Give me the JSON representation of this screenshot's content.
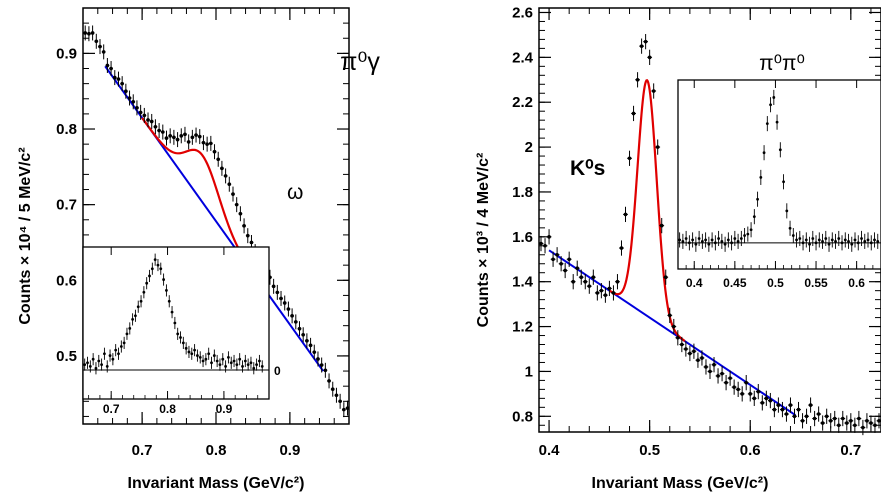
{
  "chart_data": [
    {
      "type": "scatter",
      "panel": "left",
      "annotation": "π⁰γ",
      "peak_label": "ω",
      "xlabel": "Invariant Mass (GeV/c²)",
      "ylabel": "Counts × 10⁴ / 5 MeV/c²",
      "xlim": [
        0.62,
        0.98
      ],
      "ylim": [
        0.41,
        0.96
      ],
      "xticks": [
        0.7,
        0.8,
        0.9
      ],
      "yticks": [
        0.5,
        0.6,
        0.7,
        0.8,
        0.9
      ],
      "grid": false,
      "data_points": [
        [
          0.623,
          0.927
        ],
        [
          0.628,
          0.926
        ],
        [
          0.633,
          0.927
        ],
        [
          0.638,
          0.916
        ],
        [
          0.643,
          0.909
        ],
        [
          0.648,
          0.902
        ],
        [
          0.653,
          0.884
        ],
        [
          0.658,
          0.88
        ],
        [
          0.663,
          0.868
        ],
        [
          0.668,
          0.866
        ],
        [
          0.673,
          0.86
        ],
        [
          0.678,
          0.85
        ],
        [
          0.683,
          0.841
        ],
        [
          0.688,
          0.836
        ],
        [
          0.693,
          0.828
        ],
        [
          0.698,
          0.822
        ],
        [
          0.703,
          0.818
        ],
        [
          0.708,
          0.812
        ],
        [
          0.713,
          0.81
        ],
        [
          0.718,
          0.803
        ],
        [
          0.723,
          0.798
        ],
        [
          0.728,
          0.796
        ],
        [
          0.733,
          0.788
        ],
        [
          0.738,
          0.791
        ],
        [
          0.743,
          0.789
        ],
        [
          0.748,
          0.786
        ],
        [
          0.753,
          0.791
        ],
        [
          0.758,
          0.793
        ],
        [
          0.763,
          0.783
        ],
        [
          0.768,
          0.789
        ],
        [
          0.773,
          0.792
        ],
        [
          0.778,
          0.79
        ],
        [
          0.783,
          0.782
        ],
        [
          0.788,
          0.78
        ],
        [
          0.793,
          0.781
        ],
        [
          0.798,
          0.77
        ],
        [
          0.803,
          0.76
        ],
        [
          0.808,
          0.748
        ],
        [
          0.813,
          0.738
        ],
        [
          0.818,
          0.727
        ],
        [
          0.823,
          0.714
        ],
        [
          0.828,
          0.7
        ],
        [
          0.833,
          0.688
        ],
        [
          0.838,
          0.672
        ],
        [
          0.843,
          0.659
        ],
        [
          0.848,
          0.65
        ],
        [
          0.853,
          0.638
        ],
        [
          0.858,
          0.63
        ],
        [
          0.863,
          0.618
        ],
        [
          0.868,
          0.61
        ],
        [
          0.873,
          0.604
        ],
        [
          0.878,
          0.592
        ],
        [
          0.883,
          0.584
        ],
        [
          0.888,
          0.576
        ],
        [
          0.893,
          0.57
        ],
        [
          0.898,
          0.562
        ],
        [
          0.903,
          0.553
        ],
        [
          0.908,
          0.545
        ],
        [
          0.913,
          0.536
        ],
        [
          0.918,
          0.528
        ],
        [
          0.923,
          0.52
        ],
        [
          0.928,
          0.514
        ],
        [
          0.933,
          0.505
        ],
        [
          0.938,
          0.496
        ],
        [
          0.943,
          0.488
        ],
        [
          0.948,
          0.481
        ],
        [
          0.953,
          0.467
        ],
        [
          0.958,
          0.456
        ],
        [
          0.963,
          0.448
        ],
        [
          0.968,
          0.44
        ],
        [
          0.973,
          0.429
        ],
        [
          0.978,
          0.431
        ]
      ],
      "background_fit": {
        "color": "#0000dd",
        "x": [
          0.65,
          0.945
        ],
        "y": [
          0.883,
          0.48
        ]
      },
      "signal_fit": {
        "color": "#e00000",
        "x_range": [
          0.7,
          0.86
        ],
        "peak_mass": 0.782,
        "peak_width": 0.022,
        "peak_height": 0.062
      },
      "inset": {
        "xlim": [
          0.65,
          0.98
        ],
        "xticks": [
          0.7,
          0.8,
          0.9
        ],
        "baseline_label": "0",
        "points": [
          [
            0.653,
            0.03
          ],
          [
            0.658,
            0.04
          ],
          [
            0.663,
            0.02
          ],
          [
            0.668,
            0.06
          ],
          [
            0.673,
            0.01
          ],
          [
            0.678,
            0.05
          ],
          [
            0.683,
            0.03
          ],
          [
            0.688,
            0.09
          ],
          [
            0.693,
            0.02
          ],
          [
            0.698,
            0.08
          ],
          [
            0.703,
            0.06
          ],
          [
            0.708,
            0.11
          ],
          [
            0.713,
            0.09
          ],
          [
            0.718,
            0.13
          ],
          [
            0.723,
            0.15
          ],
          [
            0.728,
            0.2
          ],
          [
            0.733,
            0.23
          ],
          [
            0.738,
            0.28
          ],
          [
            0.743,
            0.3
          ],
          [
            0.748,
            0.35
          ],
          [
            0.753,
            0.38
          ],
          [
            0.758,
            0.43
          ],
          [
            0.763,
            0.48
          ],
          [
            0.768,
            0.52
          ],
          [
            0.773,
            0.56
          ],
          [
            0.778,
            0.61
          ],
          [
            0.783,
            0.58
          ],
          [
            0.788,
            0.56
          ],
          [
            0.793,
            0.5
          ],
          [
            0.798,
            0.44
          ],
          [
            0.803,
            0.38
          ],
          [
            0.808,
            0.32
          ],
          [
            0.813,
            0.26
          ],
          [
            0.818,
            0.2
          ],
          [
            0.823,
            0.18
          ],
          [
            0.828,
            0.15
          ],
          [
            0.833,
            0.12
          ],
          [
            0.838,
            0.1
          ],
          [
            0.843,
            0.09
          ],
          [
            0.848,
            0.11
          ],
          [
            0.853,
            0.08
          ],
          [
            0.858,
            0.07
          ],
          [
            0.863,
            0.05
          ],
          [
            0.868,
            0.06
          ],
          [
            0.873,
            0.09
          ],
          [
            0.878,
            0.04
          ],
          [
            0.883,
            0.08
          ],
          [
            0.888,
            0.05
          ],
          [
            0.893,
            0.03
          ],
          [
            0.898,
            0.06
          ],
          [
            0.903,
            0.02
          ],
          [
            0.908,
            0.07
          ],
          [
            0.913,
            0.04
          ],
          [
            0.918,
            0.05
          ],
          [
            0.923,
            0.03
          ],
          [
            0.928,
            0.06
          ],
          [
            0.933,
            0.02
          ],
          [
            0.938,
            0.05
          ],
          [
            0.943,
            0.03
          ],
          [
            0.948,
            0.04
          ],
          [
            0.953,
            0.01
          ],
          [
            0.958,
            0.03
          ],
          [
            0.963,
            0.05
          ],
          [
            0.968,
            0.02
          ]
        ]
      }
    },
    {
      "type": "scatter",
      "panel": "right",
      "annotation": "π⁰π⁰",
      "peak_label": "K⁰s",
      "xlabel": "Invariant Mass (GeV/c²)",
      "ylabel": "Counts × 10³ / 4 MeV/c²",
      "xlim": [
        0.39,
        0.73
      ],
      "ylim": [
        0.73,
        2.62
      ],
      "xticks": [
        0.4,
        0.5,
        0.6,
        0.7
      ],
      "yticks": [
        0.8,
        1,
        1.2,
        1.4,
        1.6,
        1.8,
        2,
        2.2,
        2.4,
        2.6
      ],
      "grid": false,
      "data_points": [
        [
          0.392,
          1.57
        ],
        [
          0.396,
          1.56
        ],
        [
          0.4,
          1.6
        ],
        [
          0.404,
          1.5
        ],
        [
          0.408,
          1.52
        ],
        [
          0.412,
          1.48
        ],
        [
          0.416,
          1.45
        ],
        [
          0.42,
          1.5
        ],
        [
          0.424,
          1.4
        ],
        [
          0.428,
          1.46
        ],
        [
          0.432,
          1.42
        ],
        [
          0.436,
          1.4
        ],
        [
          0.44,
          1.38
        ],
        [
          0.444,
          1.42
        ],
        [
          0.448,
          1.35
        ],
        [
          0.452,
          1.36
        ],
        [
          0.456,
          1.34
        ],
        [
          0.46,
          1.37
        ],
        [
          0.464,
          1.35
        ],
        [
          0.468,
          1.4
        ],
        [
          0.472,
          1.55
        ],
        [
          0.476,
          1.7
        ],
        [
          0.48,
          1.95
        ],
        [
          0.484,
          2.15
        ],
        [
          0.488,
          2.3
        ],
        [
          0.492,
          2.45
        ],
        [
          0.496,
          2.47
        ],
        [
          0.5,
          2.4
        ],
        [
          0.504,
          2.25
        ],
        [
          0.508,
          2.0
        ],
        [
          0.512,
          1.65
        ],
        [
          0.516,
          1.42
        ],
        [
          0.52,
          1.25
        ],
        [
          0.524,
          1.2
        ],
        [
          0.528,
          1.15
        ],
        [
          0.532,
          1.12
        ],
        [
          0.536,
          1.1
        ],
        [
          0.54,
          1.08
        ],
        [
          0.544,
          1.09
        ],
        [
          0.548,
          1.05
        ],
        [
          0.552,
          1.06
        ],
        [
          0.556,
          1.02
        ],
        [
          0.56,
          1.0
        ],
        [
          0.564,
          1.03
        ],
        [
          0.568,
          0.98
        ],
        [
          0.572,
          0.99
        ],
        [
          0.576,
          0.95
        ],
        [
          0.58,
          0.97
        ],
        [
          0.584,
          0.93
        ],
        [
          0.588,
          0.92
        ],
        [
          0.592,
          0.9
        ],
        [
          0.596,
          0.95
        ],
        [
          0.6,
          0.9
        ],
        [
          0.604,
          0.88
        ],
        [
          0.608,
          0.91
        ],
        [
          0.612,
          0.86
        ],
        [
          0.616,
          0.88
        ],
        [
          0.62,
          0.87
        ],
        [
          0.624,
          0.83
        ],
        [
          0.628,
          0.85
        ],
        [
          0.632,
          0.83
        ],
        [
          0.636,
          0.81
        ],
        [
          0.64,
          0.85
        ],
        [
          0.644,
          0.8
        ],
        [
          0.648,
          0.83
        ],
        [
          0.652,
          0.78
        ],
        [
          0.656,
          0.8
        ],
        [
          0.66,
          0.85
        ],
        [
          0.664,
          0.79
        ],
        [
          0.668,
          0.81
        ],
        [
          0.672,
          0.77
        ],
        [
          0.676,
          0.8
        ],
        [
          0.68,
          0.78
        ],
        [
          0.684,
          0.79
        ],
        [
          0.688,
          0.76
        ],
        [
          0.692,
          0.79
        ],
        [
          0.696,
          0.77
        ],
        [
          0.7,
          0.78
        ],
        [
          0.704,
          0.76
        ],
        [
          0.708,
          0.79
        ],
        [
          0.712,
          0.75
        ],
        [
          0.716,
          0.78
        ],
        [
          0.72,
          0.77
        ],
        [
          0.724,
          0.76
        ],
        [
          0.728,
          0.78
        ]
      ],
      "background_fit": {
        "color": "#0000dd",
        "x": [
          0.4,
          0.645
        ],
        "y": [
          1.54,
          0.805
        ]
      },
      "signal_fit": {
        "color": "#e00000",
        "x_range": [
          0.46,
          0.535
        ],
        "peak_mass": 0.4975,
        "peak_width": 0.0095,
        "peak_height": 1.05
      },
      "inset": {
        "xlim": [
          0.38,
          0.63
        ],
        "xticks": [
          0.4,
          0.45,
          0.5,
          0.55,
          0.6
        ],
        "points": [
          [
            0.382,
            0.02
          ],
          [
            0.386,
            0.01
          ],
          [
            0.39,
            0.03
          ],
          [
            0.394,
            0.0
          ],
          [
            0.398,
            0.02
          ],
          [
            0.402,
            -0.01
          ],
          [
            0.406,
            0.03
          ],
          [
            0.41,
            0.01
          ],
          [
            0.414,
            0.02
          ],
          [
            0.418,
            -0.01
          ],
          [
            0.422,
            0.02
          ],
          [
            0.426,
            0.0
          ],
          [
            0.43,
            0.03
          ],
          [
            0.434,
            0.01
          ],
          [
            0.438,
            -0.01
          ],
          [
            0.442,
            0.02
          ],
          [
            0.446,
            0.0
          ],
          [
            0.45,
            0.03
          ],
          [
            0.454,
            0.01
          ],
          [
            0.458,
            0.03
          ],
          [
            0.462,
            0.05
          ],
          [
            0.466,
            0.06
          ],
          [
            0.47,
            0.09
          ],
          [
            0.474,
            0.18
          ],
          [
            0.478,
            0.3
          ],
          [
            0.482,
            0.45
          ],
          [
            0.486,
            0.62
          ],
          [
            0.49,
            0.82
          ],
          [
            0.494,
            0.95
          ],
          [
            0.498,
            1.0
          ],
          [
            0.502,
            0.83
          ],
          [
            0.506,
            0.64
          ],
          [
            0.51,
            0.42
          ],
          [
            0.514,
            0.22
          ],
          [
            0.518,
            0.1
          ],
          [
            0.522,
            0.05
          ],
          [
            0.526,
            0.02
          ],
          [
            0.53,
            0.03
          ],
          [
            0.534,
            0.0
          ],
          [
            0.538,
            0.02
          ],
          [
            0.542,
            -0.01
          ],
          [
            0.546,
            0.03
          ],
          [
            0.55,
            0.0
          ],
          [
            0.554,
            0.02
          ],
          [
            0.558,
            0.01
          ],
          [
            0.562,
            0.03
          ],
          [
            0.566,
            -0.01
          ],
          [
            0.57,
            0.02
          ],
          [
            0.574,
            0.01
          ],
          [
            0.578,
            0.03
          ],
          [
            0.582,
            0.0
          ],
          [
            0.586,
            0.02
          ],
          [
            0.59,
            0.01
          ],
          [
            0.594,
            -0.01
          ],
          [
            0.598,
            0.02
          ],
          [
            0.602,
            0.0
          ],
          [
            0.606,
            0.03
          ],
          [
            0.61,
            0.01
          ],
          [
            0.614,
            0.02
          ],
          [
            0.618,
            0.0
          ],
          [
            0.622,
            0.02
          ],
          [
            0.626,
            0.01
          ]
        ]
      }
    }
  ]
}
